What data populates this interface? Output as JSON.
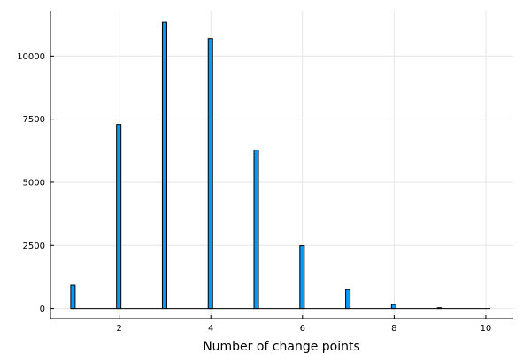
{
  "chart_data": {
    "type": "bar",
    "title": "",
    "xlabel": "Number of change points",
    "ylabel": "",
    "xlim": [
      0.5,
      10.6
    ],
    "ylim": [
      -400,
      11800
    ],
    "grid": true,
    "legend": "none",
    "x": [
      1,
      2,
      3,
      4,
      5,
      6,
      7,
      8,
      9
    ],
    "values": [
      930,
      7290,
      11340,
      10690,
      6280,
      2490,
      750,
      160,
      30
    ],
    "x_ticks": [
      2,
      4,
      6,
      8,
      10
    ],
    "x_tick_labels": [
      "2",
      "4",
      "6",
      "8",
      "10"
    ],
    "y_ticks": [
      0,
      2500,
      5000,
      7500,
      10000
    ],
    "y_tick_labels": [
      "0",
      "2500",
      "5000",
      "7500",
      "10000"
    ],
    "colors": {
      "bar_fill": "#009af9",
      "bar_stroke": "#000000",
      "grid": "#e6e6e6",
      "axis": "#000000"
    }
  }
}
